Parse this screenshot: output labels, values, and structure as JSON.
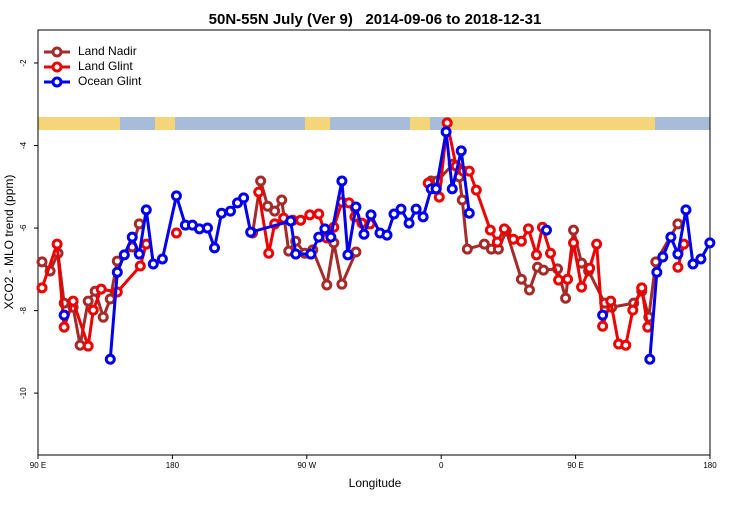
{
  "chart_data": {
    "type": "line",
    "title": "50N-55N July (Ver 9)   2014-09-06 to 2018-12-31",
    "x_label": "Longitude",
    "y_label": "XCO2 - MLO trend (ppm)",
    "xlim": [
      90,
      540
    ],
    "xticks": [
      {
        "value": 90,
        "label": "90 E"
      },
      {
        "value": 180,
        "label": "180"
      },
      {
        "value": 270,
        "label": "90 W"
      },
      {
        "value": 360,
        "label": "0"
      },
      {
        "value": 450,
        "label": "90 E"
      },
      {
        "value": 540,
        "label": "180"
      }
    ],
    "ylim": [
      -11.5,
      -1.2
    ],
    "yticks": [
      -10,
      -8,
      -6,
      -4,
      -2
    ],
    "legend": "top-left",
    "series": [
      {
        "name": "Land Nadir",
        "color": "#a52a2a",
        "x": [
          92.7,
          98.1,
          103.4,
          107.5,
          113.5,
          118.2,
          123.6,
          128.3,
          133.7,
          138.4,
          143.1,
          153.1,
          157.8,
          null,
          233.7,
          239.1,
          243.8,
          248.5,
          253.2,
          257.9,
          262.6,
          268.6,
          274.0,
          283.4,
          288.1,
          293.5,
          302.9,
          null,
          353.3,
          357.4,
          368.0,
          372.1,
          374.1,
          377.5,
          388.9,
          393.6,
          398.3,
          403.6,
          413.7,
          419.1,
          424.5,
          428.5,
          437.9,
          443.3,
          448.6,
          454.0,
          458.7,
          469.5,
          474.2,
          488.9,
          494.3,
          499.0,
          503.7,
          518.5
        ],
        "values": [
          -6.82,
          -7.04,
          -6.61,
          -7.82,
          -7.92,
          -8.84,
          -7.77,
          -7.53,
          -8.16,
          -7.72,
          -6.8,
          -6.46,
          -5.9,
          null,
          -6.12,
          -4.86,
          -5.47,
          -5.59,
          -5.32,
          -6.56,
          -6.32,
          -6.61,
          -6.53,
          -7.38,
          -6.36,
          -7.36,
          -6.58,
          null,
          -4.86,
          -4.86,
          -4.45,
          -4.76,
          -5.32,
          -6.51,
          -6.39,
          -6.51,
          -6.51,
          -6.07,
          -7.24,
          -7.5,
          -6.95,
          -7.02,
          -6.99,
          -7.7,
          -6.05,
          -6.85,
          -7.04,
          -7.82,
          -7.92,
          -7.82,
          -7.53,
          -8.16,
          -6.82,
          -5.9
        ]
      },
      {
        "name": "Land Glint",
        "color": "#ee0000",
        "x": [
          92.7,
          102.8,
          107.5,
          113.5,
          123.6,
          127.0,
          132.3,
          143.1,
          158.5,
          162.5,
          null,
          182.7,
          null,
          237.8,
          244.5,
          248.5,
          254.5,
          260.6,
          265.9,
          272.0,
          278.0,
          283.4,
          288.1,
          293.5,
          298.2,
          302.2,
          306.9,
          312.3,
          null,
          351.3,
          358.7,
          364.0,
          370.0,
          374.7,
          378.8,
          383.5,
          392.9,
          397.6,
          402.3,
          408.3,
          413.7,
          418.4,
          423.8,
          427.8,
          433.2,
          438.6,
          444.6,
          448.6,
          454.0,
          459.4,
          464.1,
          468.1,
          473.5,
          478.8,
          483.6,
          488.3,
          494.3,
          498.3,
          null,
          518.5,
          522.5
        ],
        "values": [
          -7.45,
          -6.39,
          -8.4,
          -7.77,
          -8.86,
          -7.99,
          -7.48,
          -7.55,
          -6.92,
          -6.39,
          null,
          -6.12,
          null,
          -5.13,
          -6.61,
          -5.9,
          -5.76,
          -5.81,
          -5.81,
          -5.68,
          -5.66,
          -6.24,
          -5.98,
          -5.37,
          -5.39,
          -5.73,
          -5.88,
          -5.9,
          null,
          -4.91,
          -5.25,
          -3.45,
          -4.5,
          -4.62,
          -4.62,
          -5.08,
          -6.05,
          -6.34,
          -6.02,
          -6.27,
          -6.32,
          -6.02,
          -6.65,
          -5.98,
          -6.61,
          -7.26,
          -7.24,
          -6.36,
          -7.43,
          -6.97,
          -6.39,
          -8.38,
          -7.77,
          -8.81,
          -8.84,
          -7.99,
          -7.45,
          -8.4,
          null,
          -6.95,
          -6.39
        ]
      },
      {
        "name": "Ocean Glint",
        "color": "#0000ee",
        "x": [
          107.5,
          null,
          138.4,
          143.1,
          147.8,
          153.1,
          157.8,
          162.5,
          167.2,
          173.3,
          182.7,
          188.7,
          193.4,
          198.1,
          203.5,
          208.2,
          212.9,
          218.9,
          223.6,
          227.7,
          232.4,
          259.2,
          262.6,
          272.7,
          278.0,
          282.1,
          286.1,
          293.5,
          297.5,
          302.9,
          308.3,
          313.0,
          319.0,
          323.7,
          328.4,
          333.1,
          338.5,
          343.2,
          347.9,
          353.3,
          356.6,
          363.3,
          367.4,
          373.4,
          378.8,
          null,
          430.5,
          null,
          468.1,
          null,
          499.7,
          504.4,
          508.4,
          513.8,
          518.5,
          523.9,
          528.6,
          533.9,
          539.9
        ],
        "values": [
          -8.11,
          null,
          -9.18,
          -7.07,
          -6.65,
          -6.22,
          -6.63,
          -5.56,
          -6.87,
          -6.75,
          -5.22,
          -5.93,
          -5.93,
          -6.02,
          -6.0,
          -6.48,
          -5.64,
          -5.59,
          -5.39,
          -5.27,
          -6.1,
          -5.83,
          -6.63,
          -6.63,
          -6.22,
          -6.02,
          -6.22,
          -4.86,
          -6.65,
          -5.49,
          -6.15,
          -5.68,
          -6.12,
          -6.17,
          -5.66,
          -5.54,
          -5.88,
          -5.54,
          -5.73,
          -5.05,
          -5.05,
          -3.67,
          -5.05,
          -4.13,
          -5.64,
          null,
          -6.05,
          null,
          -8.11,
          null,
          -9.18,
          -7.07,
          -6.7,
          -6.22,
          -6.63,
          -5.56,
          -6.87,
          -6.75,
          -6.36
        ]
      }
    ]
  }
}
